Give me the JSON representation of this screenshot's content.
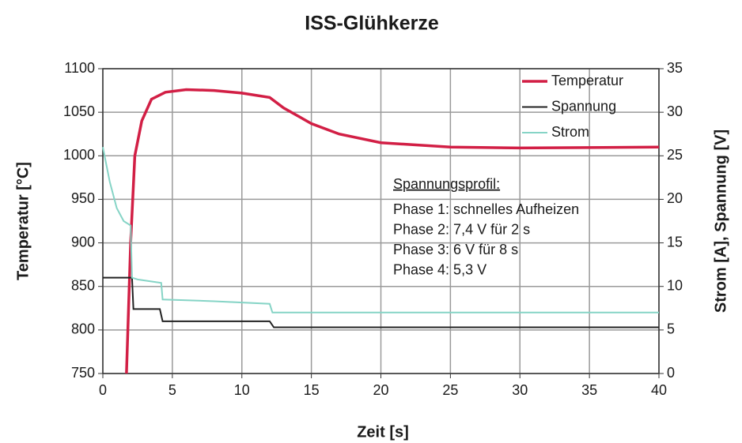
{
  "chart_data": {
    "type": "line",
    "title": "ISS-Glühkerze",
    "xlabel": "Zeit [s]",
    "ylabel": "Temperatur [°C]",
    "y2label": "Strom [A], Spannung [V]",
    "xlim": [
      0,
      40
    ],
    "xticks": [
      0,
      5,
      10,
      15,
      20,
      25,
      30,
      35,
      40
    ],
    "ylim": [
      750,
      1100
    ],
    "yticks": [
      750,
      800,
      850,
      900,
      950,
      1000,
      1050,
      1100
    ],
    "y2lim": [
      0,
      35
    ],
    "y2ticks": [
      0,
      5,
      10,
      15,
      20,
      25,
      30,
      35
    ],
    "grid": true,
    "legend": "upper right",
    "series": [
      {
        "name": "Temperatur",
        "color": "#d21f45",
        "x": [
          1.7,
          2.0,
          2.3,
          2.8,
          3.5,
          4.5,
          6,
          8,
          10,
          12,
          13,
          15,
          17,
          20,
          25,
          30,
          40
        ],
        "values": [
          750,
          900,
          1000,
          1040,
          1065,
          1073,
          1076,
          1075,
          1072,
          1067,
          1055,
          1037,
          1025,
          1015,
          1010,
          1009,
          1010
        ]
      },
      {
        "name": "Spannung",
        "color": "#222222",
        "axis": "y2",
        "x": [
          0,
          2.1,
          2.2,
          4.1,
          4.3,
          12,
          12.3,
          40
        ],
        "values": [
          11,
          11,
          7.4,
          7.4,
          6,
          6,
          5.3,
          5.3
        ]
      },
      {
        "name": "Strom",
        "color": "#86d4c6",
        "axis": "y2",
        "x": [
          0,
          0.5,
          1,
          1.5,
          2,
          2.1,
          2.5,
          4.2,
          4.3,
          8,
          12,
          12.2,
          40
        ],
        "values": [
          26,
          22,
          19,
          17.5,
          17,
          11,
          10.8,
          10.4,
          8.5,
          8.3,
          8.0,
          7.0,
          7.0
        ]
      }
    ],
    "annotation": {
      "heading": "Spannungsprofil:",
      "lines": [
        "Phase 1: schnelles Aufheizen",
        "Phase 2: 7,4 V für 2 s",
        "Phase 3: 6 V für 8 s",
        "Phase 4: 5,3 V"
      ]
    }
  }
}
